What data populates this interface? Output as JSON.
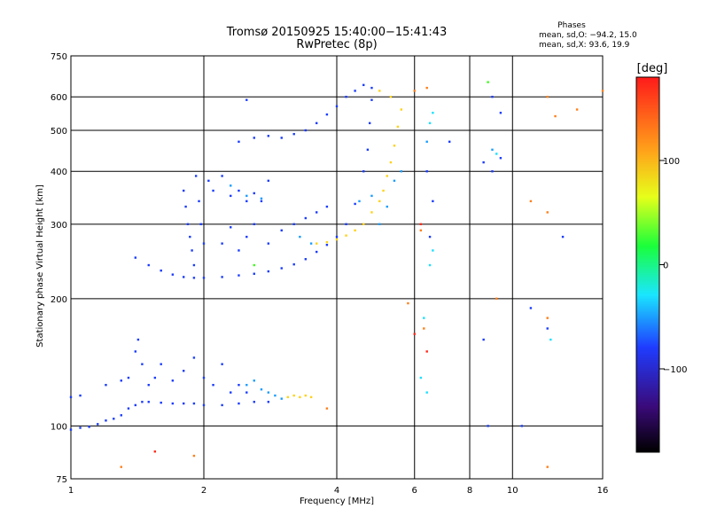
{
  "chart_data": {
    "type": "scatter",
    "title": "Tromsø 20150925 15:40:00−15:41:43",
    "subtitle": "RwPretec (8p)",
    "xlabel": "Frequency [MHz]",
    "ylabel": "Stationary phase Virtual Height [km]",
    "x_scale": "log2",
    "y_scale": "log",
    "xlim": [
      1,
      16
    ],
    "ylim": [
      75,
      750
    ],
    "x_ticks": [
      1,
      2,
      4,
      6,
      8,
      10,
      16
    ],
    "x_tick_labels": [
      "1",
      "2",
      "4",
      "6",
      "8",
      "10",
      "16"
    ],
    "y_ticks": [
      75,
      100,
      200,
      300,
      400,
      500,
      600,
      750
    ],
    "y_tick_labels": [
      "75",
      "100",
      "200",
      "300",
      "400",
      "500",
      "600",
      "750"
    ],
    "grid": true,
    "stats": {
      "title": "Phases",
      "line_o": "mean, sd,O: −94.2, 15.0",
      "line_x": "mean, sd,X:  93.6, 19.9"
    },
    "colorbar": {
      "label": "[deg]",
      "range": [
        -180,
        180
      ],
      "ticks": [
        100,
        0,
        -100
      ],
      "tick_labels": [
        "100",
        "0",
        "−100"
      ]
    },
    "series": [
      {
        "color": "#1a3cff",
        "points": [
          [
            1.0,
            98
          ],
          [
            1.05,
            99
          ],
          [
            1.1,
            99.5
          ],
          [
            1.15,
            101
          ],
          [
            1.2,
            103
          ],
          [
            1.25,
            104
          ],
          [
            1.3,
            106
          ],
          [
            1.35,
            110
          ],
          [
            1.4,
            112
          ],
          [
            1.45,
            114
          ],
          [
            1.5,
            114
          ],
          [
            1.6,
            113.5
          ],
          [
            1.7,
            113
          ],
          [
            1.8,
            113
          ],
          [
            1.9,
            113
          ],
          [
            2.0,
            112
          ],
          [
            2.2,
            112
          ],
          [
            2.4,
            113
          ],
          [
            2.6,
            114
          ],
          [
            2.8,
            114
          ]
        ]
      },
      {
        "color": "#1a3cff",
        "points": [
          [
            1.0,
            117
          ],
          [
            1.05,
            118
          ],
          [
            1.2,
            125
          ],
          [
            1.3,
            128
          ],
          [
            1.35,
            130
          ],
          [
            1.4,
            150
          ],
          [
            1.42,
            160
          ],
          [
            1.45,
            140
          ],
          [
            1.5,
            125
          ],
          [
            1.55,
            130
          ],
          [
            1.6,
            140
          ],
          [
            1.7,
            128
          ],
          [
            1.8,
            135
          ],
          [
            1.9,
            145
          ],
          [
            2.0,
            130
          ],
          [
            2.1,
            125
          ],
          [
            2.2,
            140
          ],
          [
            2.3,
            120
          ],
          [
            2.4,
            125
          ],
          [
            2.5,
            120
          ]
        ]
      },
      {
        "color": "#1a3cff",
        "points": [
          [
            1.4,
            250
          ],
          [
            1.5,
            240
          ],
          [
            1.6,
            233
          ],
          [
            1.7,
            228
          ],
          [
            1.8,
            225
          ],
          [
            1.9,
            224
          ],
          [
            2.0,
            224
          ],
          [
            2.2,
            225
          ],
          [
            2.4,
            227
          ],
          [
            2.6,
            229
          ],
          [
            2.8,
            232
          ],
          [
            3.0,
            236
          ],
          [
            3.2,
            241
          ],
          [
            3.4,
            248
          ],
          [
            3.6,
            258
          ],
          [
            3.8,
            268
          ],
          [
            4.0,
            280
          ],
          [
            4.2,
            300
          ],
          [
            4.4,
            335
          ],
          [
            4.6,
            400
          ],
          [
            4.7,
            450
          ],
          [
            4.75,
            520
          ],
          [
            4.8,
            590
          ],
          [
            4.8,
            630
          ]
        ]
      },
      {
        "color": "#1a3cff",
        "points": [
          [
            1.8,
            360
          ],
          [
            1.82,
            330
          ],
          [
            1.84,
            300
          ],
          [
            1.86,
            280
          ],
          [
            1.88,
            260
          ],
          [
            1.9,
            240
          ],
          [
            1.92,
            390
          ],
          [
            1.95,
            340
          ],
          [
            1.97,
            300
          ],
          [
            2.0,
            270
          ],
          [
            2.05,
            380
          ],
          [
            2.1,
            360
          ],
          [
            2.2,
            390
          ],
          [
            2.3,
            350
          ],
          [
            2.4,
            360
          ],
          [
            2.5,
            340
          ],
          [
            2.6,
            355
          ],
          [
            2.7,
            340
          ],
          [
            2.8,
            380
          ]
        ]
      },
      {
        "color": "#1a3cff",
        "points": [
          [
            2.4,
            470
          ],
          [
            2.6,
            480
          ],
          [
            2.8,
            485
          ],
          [
            3.0,
            480
          ],
          [
            3.2,
            490
          ],
          [
            3.4,
            500
          ],
          [
            3.6,
            520
          ],
          [
            3.8,
            545
          ],
          [
            4.0,
            570
          ],
          [
            4.2,
            600
          ],
          [
            4.4,
            620
          ],
          [
            4.6,
            640
          ]
        ]
      },
      {
        "color": "#1a3cff",
        "points": [
          [
            2.4,
            260
          ],
          [
            2.5,
            280
          ],
          [
            2.6,
            300
          ],
          [
            2.8,
            270
          ],
          [
            3.0,
            290
          ],
          [
            3.2,
            300
          ],
          [
            3.4,
            310
          ],
          [
            3.6,
            320
          ],
          [
            3.8,
            330
          ],
          [
            2.2,
            270
          ],
          [
            2.3,
            295
          ]
        ]
      },
      {
        "color": "#1a9dff",
        "points": [
          [
            2.5,
            125
          ],
          [
            2.6,
            128
          ],
          [
            2.7,
            122
          ],
          [
            2.8,
            120
          ],
          [
            2.9,
            118
          ],
          [
            3.0,
            116
          ],
          [
            2.3,
            370
          ],
          [
            2.5,
            350
          ],
          [
            2.7,
            345
          ],
          [
            3.3,
            280
          ],
          [
            3.5,
            270
          ],
          [
            4.5,
            340
          ],
          [
            4.8,
            350
          ],
          [
            5.0,
            300
          ],
          [
            5.2,
            330
          ],
          [
            5.4,
            380
          ],
          [
            5.6,
            400
          ],
          [
            6.4,
            470
          ],
          [
            9.0,
            450
          ]
        ]
      },
      {
        "color": "#ffd21a",
        "points": [
          [
            3.1,
            117
          ],
          [
            3.2,
            118
          ],
          [
            3.3,
            117
          ],
          [
            3.4,
            118
          ],
          [
            3.5,
            117
          ],
          [
            3.6,
            270
          ],
          [
            3.8,
            272
          ],
          [
            4.0,
            276
          ],
          [
            4.2,
            282
          ],
          [
            4.4,
            290
          ],
          [
            4.6,
            300
          ],
          [
            4.8,
            320
          ],
          [
            5.0,
            340
          ],
          [
            5.1,
            360
          ],
          [
            5.2,
            390
          ],
          [
            5.3,
            420
          ],
          [
            5.4,
            460
          ],
          [
            5.5,
            510
          ],
          [
            5.6,
            560
          ],
          [
            5.3,
            600
          ],
          [
            5.0,
            620
          ]
        ]
      },
      {
        "color": "#ff7f1a",
        "points": [
          [
            3.8,
            110
          ],
          [
            5.8,
            195
          ],
          [
            6.0,
            620
          ],
          [
            6.2,
            290
          ],
          [
            6.3,
            170
          ],
          [
            6.4,
            630
          ],
          [
            9.2,
            200
          ],
          [
            12.0,
            600
          ],
          [
            12.0,
            180
          ],
          [
            12.0,
            320
          ],
          [
            12.5,
            540
          ],
          [
            14.0,
            560
          ],
          [
            11.0,
            340
          ],
          [
            1.9,
            85
          ],
          [
            1.3,
            80
          ],
          [
            12.0,
            80
          ],
          [
            16.0,
            620
          ]
        ]
      },
      {
        "color": "#ff2a1a",
        "points": [
          [
            1.55,
            87
          ],
          [
            6.0,
            165
          ],
          [
            6.2,
            300
          ],
          [
            6.4,
            150
          ]
        ]
      },
      {
        "color": "#1a3cff",
        "points": [
          [
            6.4,
            400
          ],
          [
            6.5,
            280
          ],
          [
            6.6,
            340
          ],
          [
            7.2,
            470
          ],
          [
            8.6,
            420
          ],
          [
            8.6,
            160
          ],
          [
            9.0,
            400
          ],
          [
            9.4,
            550
          ],
          [
            9.4,
            430
          ],
          [
            11.0,
            190
          ],
          [
            12.0,
            170
          ],
          [
            13.0,
            280
          ],
          [
            8.8,
            100
          ],
          [
            10.5,
            100
          ],
          [
            9.0,
            600
          ],
          [
            2.5,
            590
          ]
        ]
      },
      {
        "color": "#1ae0ff",
        "points": [
          [
            6.2,
            130
          ],
          [
            6.4,
            120
          ],
          [
            6.5,
            240
          ],
          [
            6.6,
            260
          ],
          [
            6.5,
            520
          ],
          [
            6.6,
            550
          ],
          [
            9.2,
            440
          ],
          [
            12.2,
            160
          ],
          [
            6.3,
            180
          ]
        ]
      },
      {
        "color": "#3cff1a",
        "points": [
          [
            8.8,
            650
          ],
          [
            2.6,
            240
          ]
        ]
      }
    ]
  }
}
